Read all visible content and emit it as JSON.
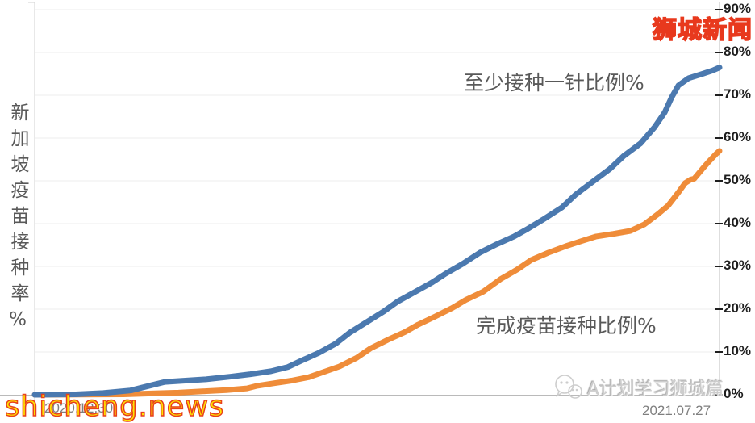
{
  "title_vertical": "新加坡疫苗接种率%",
  "series_labels": {
    "first_dose": "至少接种一针比例%",
    "fully_vaccinated": "完成疫苗接种比例%"
  },
  "x_axis": {
    "start_label": "2020.12.30",
    "end_label": "2021.07.27"
  },
  "y_axis": {
    "tick_labels": [
      "90%",
      "80%",
      "70%",
      "60%",
      "50%",
      "40%",
      "30%",
      "20%",
      "10%",
      "0%"
    ]
  },
  "watermarks": {
    "top_right": "狮城新闻",
    "bottom_left": "shicheng.news",
    "bottom_right": "A计划学习狮城篇"
  },
  "colors": {
    "first_dose_line": "#4b79af",
    "fully_vaccinated_line": "#ef8c39",
    "grid": "#ececec",
    "left_axis": "#d8d8d8",
    "right_axis": "#c9c9c9",
    "baseline": "#a3a3a3",
    "tick_dash": "#1f1f1f",
    "watermark_yellow": "#ffe400",
    "watermark_red_outline": "#e8401c",
    "annotation_gray": "#595959",
    "date_gray": "#7f7f7f"
  },
  "chart_data": {
    "type": "line",
    "title": "新加坡疫苗接种率% (Singapore vaccination rate %)",
    "xlabel": "",
    "ylabel": "接种率%",
    "x_encoding": "fraction of time axis from 2020.12.30 (0.0) to 2021.07.27 (1.0)",
    "x_domain_labels": [
      "2020.12.30",
      "2021.07.27"
    ],
    "ylim": [
      0,
      90
    ],
    "ytick_values": [
      90,
      80,
      70,
      60,
      50,
      40,
      30,
      20,
      10,
      0
    ],
    "grid": "horizontal gridlines every 10%",
    "legend": "inline text annotations next to lines",
    "series": [
      {
        "name": "至少接种一针比例%",
        "color": "#4b79af",
        "points": [
          [
            0.0,
            0
          ],
          [
            0.06,
            0.1
          ],
          [
            0.1,
            0.4
          ],
          [
            0.14,
            1.0
          ],
          [
            0.17,
            2.2
          ],
          [
            0.19,
            3.0
          ],
          [
            0.22,
            3.3
          ],
          [
            0.25,
            3.6
          ],
          [
            0.285,
            4.2
          ],
          [
            0.315,
            4.8
          ],
          [
            0.345,
            5.5
          ],
          [
            0.37,
            6.5
          ],
          [
            0.39,
            8.0
          ],
          [
            0.415,
            9.8
          ],
          [
            0.44,
            12.0
          ],
          [
            0.46,
            14.5
          ],
          [
            0.485,
            17.0
          ],
          [
            0.51,
            19.5
          ],
          [
            0.53,
            21.8
          ],
          [
            0.555,
            24.0
          ],
          [
            0.58,
            26.2
          ],
          [
            0.6,
            28.3
          ],
          [
            0.625,
            30.6
          ],
          [
            0.65,
            33.2
          ],
          [
            0.675,
            35.2
          ],
          [
            0.7,
            37.0
          ],
          [
            0.72,
            38.8
          ],
          [
            0.745,
            41.2
          ],
          [
            0.77,
            43.8
          ],
          [
            0.79,
            46.8
          ],
          [
            0.815,
            49.8
          ],
          [
            0.84,
            52.8
          ],
          [
            0.86,
            55.8
          ],
          [
            0.885,
            58.8
          ],
          [
            0.905,
            62.5
          ],
          [
            0.92,
            66.0
          ],
          [
            0.93,
            69.5
          ],
          [
            0.94,
            72.3
          ],
          [
            0.955,
            74.0
          ],
          [
            0.975,
            75.0
          ],
          [
            0.99,
            75.8
          ],
          [
            1.0,
            76.5
          ]
        ]
      },
      {
        "name": "完成疫苗接种比例%",
        "color": "#ef8c39",
        "points": [
          [
            0.0,
            0
          ],
          [
            0.13,
            0.1
          ],
          [
            0.17,
            0.3
          ],
          [
            0.21,
            0.5
          ],
          [
            0.245,
            0.8
          ],
          [
            0.28,
            1.1
          ],
          [
            0.31,
            1.5
          ],
          [
            0.325,
            2.1
          ],
          [
            0.35,
            2.7
          ],
          [
            0.375,
            3.3
          ],
          [
            0.4,
            4.1
          ],
          [
            0.42,
            5.2
          ],
          [
            0.445,
            6.6
          ],
          [
            0.47,
            8.6
          ],
          [
            0.49,
            10.8
          ],
          [
            0.515,
            12.8
          ],
          [
            0.54,
            14.6
          ],
          [
            0.56,
            16.4
          ],
          [
            0.585,
            18.3
          ],
          [
            0.61,
            20.3
          ],
          [
            0.63,
            22.2
          ],
          [
            0.655,
            24.1
          ],
          [
            0.68,
            27.0
          ],
          [
            0.705,
            29.3
          ],
          [
            0.725,
            31.5
          ],
          [
            0.75,
            33.2
          ],
          [
            0.775,
            34.7
          ],
          [
            0.8,
            36.0
          ],
          [
            0.82,
            37.0
          ],
          [
            0.845,
            37.6
          ],
          [
            0.87,
            38.3
          ],
          [
            0.89,
            39.8
          ],
          [
            0.91,
            42.2
          ],
          [
            0.925,
            44.2
          ],
          [
            0.94,
            47.3
          ],
          [
            0.95,
            49.5
          ],
          [
            0.958,
            50.3
          ],
          [
            0.963,
            50.5
          ],
          [
            0.975,
            52.8
          ],
          [
            0.985,
            54.6
          ],
          [
            0.995,
            56.3
          ],
          [
            1.0,
            57.0
          ]
        ]
      }
    ]
  }
}
